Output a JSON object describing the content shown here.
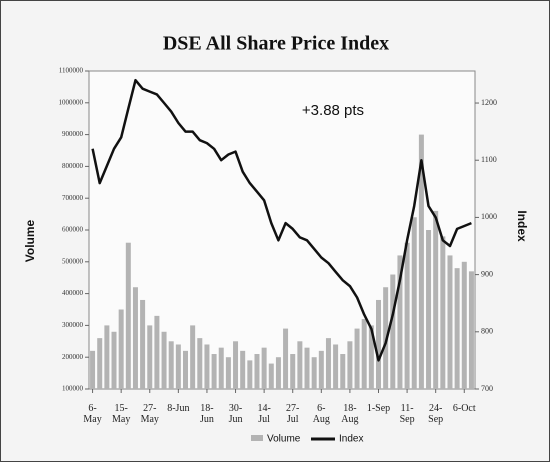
{
  "chart_data": {
    "type": "bar-line",
    "title": "DSE All Share Price Index",
    "annotation": "+3.88 pts",
    "y_label": "Volume",
    "y2_label": "Index",
    "categories": [
      "6-May",
      null,
      null,
      null,
      "15-May",
      null,
      null,
      null,
      "27-May",
      null,
      null,
      null,
      "8-Jun",
      null,
      null,
      null,
      "18-Jun",
      null,
      null,
      null,
      "30-Jun",
      null,
      null,
      null,
      "14-Jul",
      null,
      null,
      null,
      "27-Jul",
      null,
      null,
      null,
      "6-Aug",
      null,
      null,
      null,
      "18-Aug",
      null,
      null,
      null,
      "1-Sep",
      null,
      null,
      null,
      "11-Sep",
      null,
      null,
      null,
      "24-Sep",
      null,
      null,
      null,
      "6-Oct",
      null
    ],
    "series": [
      {
        "name": "Volume",
        "color": "#b3b3b3",
        "axis": "y",
        "values": [
          220000,
          260000,
          300000,
          280000,
          350000,
          560000,
          420000,
          380000,
          300000,
          330000,
          280000,
          250000,
          240000,
          220000,
          300000,
          260000,
          240000,
          210000,
          230000,
          200000,
          250000,
          220000,
          190000,
          210000,
          230000,
          180000,
          200000,
          290000,
          210000,
          250000,
          230000,
          200000,
          220000,
          260000,
          240000,
          210000,
          250000,
          290000,
          320000,
          300000,
          380000,
          420000,
          460000,
          520000,
          560000,
          640000,
          900000,
          600000,
          660000,
          580000,
          520000,
          480000,
          500000,
          470000
        ]
      },
      {
        "name": "Index",
        "color": "#111111",
        "axis": "y2",
        "values": [
          1120,
          1060,
          1090,
          1120,
          1140,
          1190,
          1240,
          1225,
          1220,
          1215,
          1200,
          1185,
          1165,
          1150,
          1150,
          1135,
          1130,
          1120,
          1100,
          1110,
          1115,
          1080,
          1060,
          1045,
          1030,
          990,
          960,
          990,
          980,
          965,
          960,
          945,
          930,
          920,
          905,
          890,
          880,
          860,
          830,
          805,
          750,
          780,
          830,
          890,
          960,
          1020,
          1100,
          1020,
          1000,
          960,
          950,
          980,
          985,
          990
        ]
      }
    ],
    "ylim": [
      100000,
      1100000
    ],
    "yticks": [
      100000,
      200000,
      300000,
      400000,
      500000,
      600000,
      700000,
      800000,
      900000,
      1000000,
      1100000
    ],
    "y2lim": [
      700,
      1256
    ],
    "y2ticks": [
      700,
      800,
      900,
      1000,
      1100,
      1200
    ]
  }
}
